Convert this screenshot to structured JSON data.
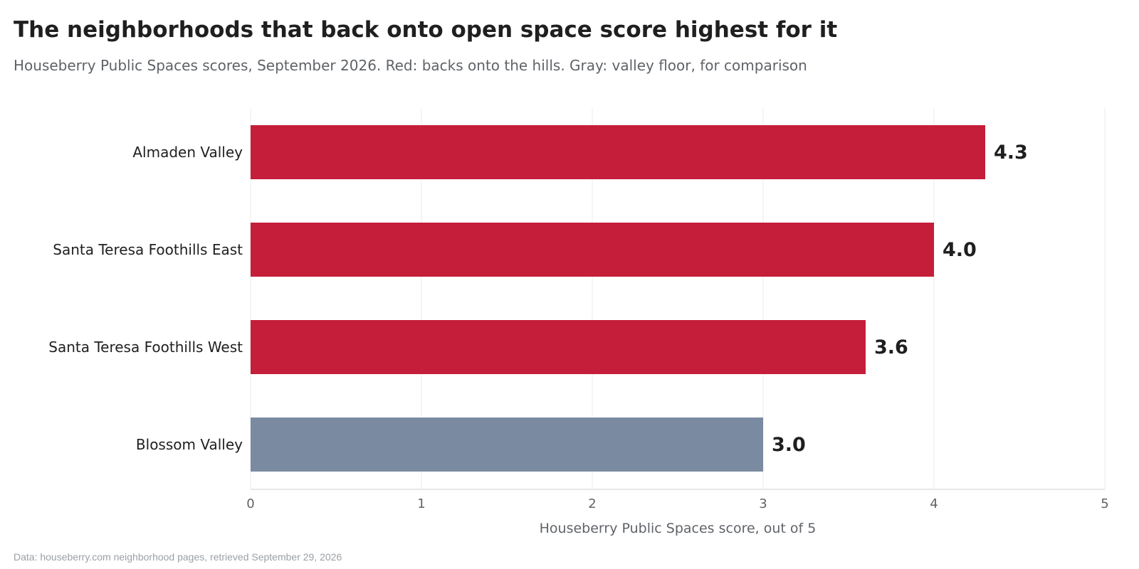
{
  "header": {
    "title": "The neighborhoods that back onto open space score highest for it",
    "subtitle": "Houseberry Public Spaces scores, September 2026. Red: backs onto the hills. Gray: valley floor, for comparison"
  },
  "footer": {
    "source": "Data: houseberry.com neighborhood pages, retrieved September 29, 2026"
  },
  "colors": {
    "hills": "#c41e3a",
    "valley": "#7a8aa0",
    "grid": "#ebebeb",
    "axis": "#d0d0d0"
  },
  "chart_data": {
    "type": "bar",
    "orientation": "horizontal",
    "categories": [
      "Almaden Valley",
      "Santa Teresa Foothills East",
      "Santa Teresa Foothills West",
      "Blossom Valley"
    ],
    "values": [
      4.3,
      4.0,
      3.6,
      3.0
    ],
    "value_labels": [
      "4.3",
      "4.0",
      "3.6",
      "3.0"
    ],
    "groups": [
      "hills",
      "hills",
      "hills",
      "valley"
    ],
    "xlabel": "Houseberry Public Spaces score, out of 5",
    "ylabel": "",
    "xlim": [
      0,
      5
    ],
    "xticks": [
      0,
      1,
      2,
      3,
      4,
      5
    ],
    "xtick_labels": [
      "0",
      "1",
      "2",
      "3",
      "4",
      "5"
    ],
    "grid": true,
    "legend": "none"
  }
}
